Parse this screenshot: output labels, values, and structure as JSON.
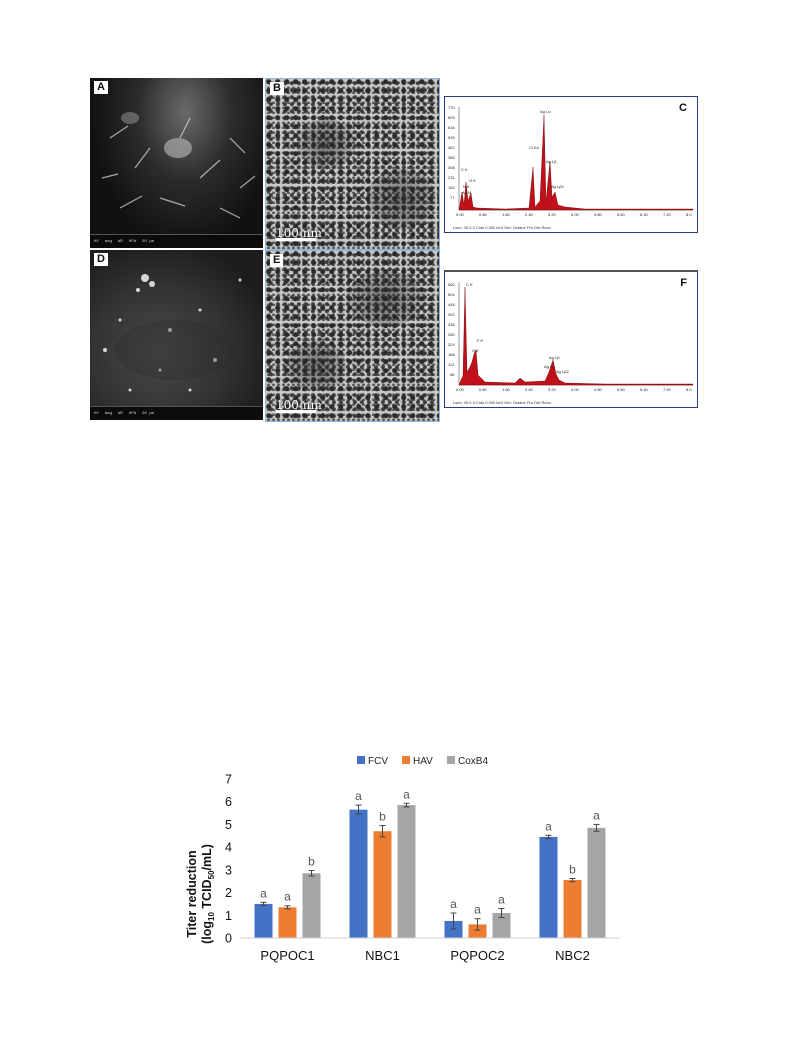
{
  "figure_top": {
    "panels": [
      {
        "letter": "A",
        "kind": "sem"
      },
      {
        "letter": "B",
        "kind": "tem",
        "scale": "100 nm"
      },
      {
        "letter": "C",
        "kind": "edx",
        "peaks": [
          "C K",
          "N K",
          "Au M",
          "O K",
          "Cl Ka",
          "Ag Lα",
          "Ag Lβ",
          "Ag Lβ2"
        ],
        "xticks": [
          "0.00",
          "0.80",
          "1.60",
          "2.40",
          "3.20",
          "4.00",
          "4.80",
          "5.60",
          "6.40",
          "7.20",
          "8.0"
        ],
        "yticks": [
          "770",
          "693",
          "616",
          "539",
          "462",
          "385",
          "308",
          "231",
          "154",
          "77"
        ],
        "footer": "Lsec: 30.0 0 Cnts 0.000 keV Det: Octane Pro Det    Reso"
      },
      {
        "letter": "D",
        "kind": "sem"
      },
      {
        "letter": "E",
        "kind": "tem",
        "scale": "100 nm"
      },
      {
        "letter": "F",
        "kind": "edx",
        "peaks": [
          "C K",
          "O K",
          "F K",
          "Ag Lβ",
          "Ag La",
          "Ag Lβ2"
        ],
        "xticks": [
          "0.00",
          "0.80",
          "1.60",
          "2.40",
          "3.20",
          "4.00",
          "4.80",
          "5.60",
          "6.40",
          "7.20",
          "8.0"
        ],
        "yticks": [
          "560",
          "504",
          "448",
          "392",
          "336",
          "280",
          "224",
          "168",
          "112",
          "56"
        ],
        "footer": "Lsec: 30.0 0 Cnts 0.000 keV Det: Octane Pro Det    Reso"
      }
    ]
  },
  "chart_data": {
    "type": "bar",
    "categories": [
      "PQPOC1",
      "NBC1",
      "PQPOC2",
      "NBC2"
    ],
    "series": [
      {
        "name": "FCV",
        "color": "#4472c4",
        "values": [
          1.5,
          5.65,
          0.75,
          4.45
        ],
        "errors": [
          0.07,
          0.2,
          0.35,
          0.07
        ],
        "letters": [
          "a",
          "a",
          "a",
          "a"
        ]
      },
      {
        "name": "HAV",
        "color": "#ed7d31",
        "values": [
          1.35,
          4.7,
          0.6,
          2.55
        ],
        "errors": [
          0.07,
          0.25,
          0.25,
          0.07
        ],
        "letters": [
          "a",
          "b",
          "a",
          "b"
        ]
      },
      {
        "name": "CoxB4",
        "color": "#a5a5a5",
        "values": [
          2.85,
          5.85,
          1.1,
          4.85
        ],
        "errors": [
          0.12,
          0.08,
          0.2,
          0.15
        ],
        "letters": [
          "b",
          "a",
          "a",
          "a"
        ]
      }
    ],
    "ylabel_line1": "Titer reduction",
    "ylabel_line2_parts": [
      "(log",
      "10",
      " TCID",
      "50",
      "/mL)"
    ],
    "ylim": [
      0,
      7
    ],
    "yticks": [
      0,
      1,
      2,
      3,
      4,
      5,
      6,
      7
    ],
    "legend_position": "top-center",
    "grid": false
  }
}
